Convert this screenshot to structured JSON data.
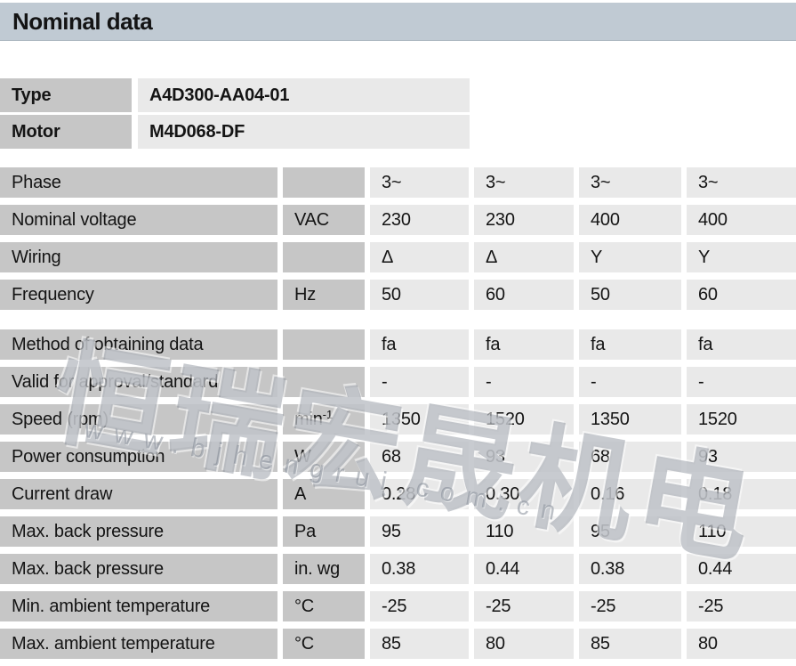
{
  "page": {
    "title": "Nominal data"
  },
  "colors": {
    "header_bg": "#c0cad3",
    "label_cell_bg": "#c6c6c6",
    "value_cell_bg": "#e9e9e9",
    "text": "#141414",
    "watermark_gray": "#767e89"
  },
  "identity": {
    "rows": [
      {
        "label": "Type",
        "value": "A4D300-AA04-01"
      },
      {
        "label": "Motor",
        "value": "M4D068-DF"
      }
    ]
  },
  "nominal_table": {
    "sections": [
      {
        "rows": [
          {
            "label": "Phase",
            "unit": "",
            "values": [
              "3~",
              "3~",
              "3~",
              "3~"
            ]
          },
          {
            "label": "Nominal voltage",
            "unit": "VAC",
            "values": [
              "230",
              "230",
              "400",
              "400"
            ]
          },
          {
            "label": "Wiring",
            "unit": "",
            "values": [
              "Δ",
              "Δ",
              "Y",
              "Y"
            ]
          },
          {
            "label": "Frequency",
            "unit": "Hz",
            "values": [
              "50",
              "60",
              "50",
              "60"
            ]
          }
        ]
      },
      {
        "rows": [
          {
            "label": "Method of obtaining data",
            "unit": "",
            "values": [
              "fa",
              "fa",
              "fa",
              "fa"
            ]
          },
          {
            "label": "Valid for approval/standard",
            "unit": "",
            "values": [
              "-",
              "-",
              "-",
              "-"
            ]
          },
          {
            "label": "Speed (rpm)",
            "unit": "min",
            "unit_sup": "-1",
            "values": [
              "1350",
              "1520",
              "1350",
              "1520"
            ]
          },
          {
            "label": "Power consumption",
            "unit": "W",
            "values": [
              "68",
              "93",
              "68",
              "93"
            ]
          },
          {
            "label": "Current draw",
            "unit": "A",
            "values": [
              "0.28",
              "0.30",
              "0.16",
              "0.18"
            ]
          },
          {
            "label": "Max. back pressure",
            "unit": "Pa",
            "values": [
              "95",
              "110",
              "95",
              "110"
            ]
          },
          {
            "label": "Max. back pressure",
            "unit": "in. wg",
            "values": [
              "0.38",
              "0.44",
              "0.38",
              "0.44"
            ]
          },
          {
            "label": "Min. ambient temperature",
            "unit": "°C",
            "values": [
              "-25",
              "-25",
              "-25",
              "-25"
            ]
          },
          {
            "label": "Max. ambient temperature",
            "unit": "°C",
            "values": [
              "85",
              "80",
              "85",
              "80"
            ]
          }
        ]
      }
    ]
  },
  "watermark": {
    "cjk_text": "恒瑞宏晟机电",
    "url_text": "www.bjhengrui.com.cn"
  }
}
